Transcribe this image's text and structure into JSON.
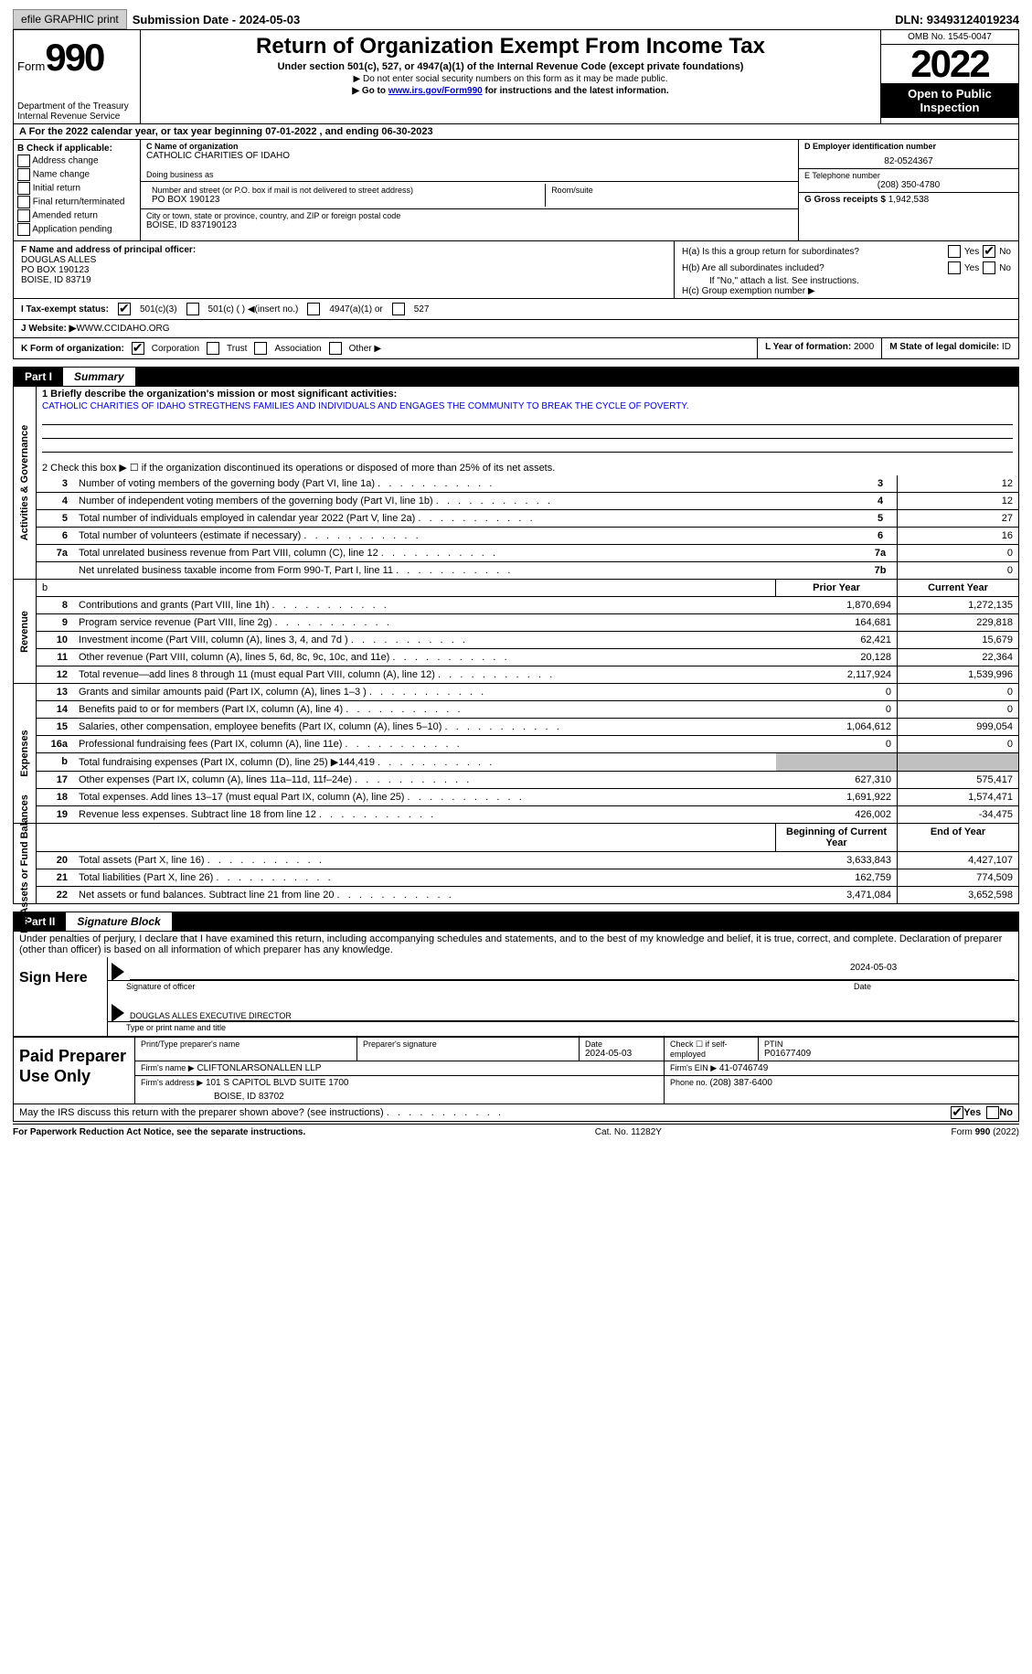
{
  "header": {
    "efile": "efile GRAPHIC print",
    "sub_lbl": "Submission Date - ",
    "sub_date": "2024-05-03",
    "dln_lbl": "DLN: ",
    "dln": "93493124019234"
  },
  "top": {
    "form": "Form",
    "num": "990",
    "title": "Return of Organization Exempt From Income Tax",
    "sub": "Under section 501(c), 527, or 4947(a)(1) of the Internal Revenue Code (except private foundations)",
    "sub2": "▶ Do not enter social security numbers on this form as it may be made public.",
    "sub3_pre": "▶ Go to ",
    "sub3_link": "www.irs.gov/Form990",
    "sub3_post": " for instructions and the latest information.",
    "dept": "Department of the Treasury",
    "irs": "Internal Revenue Service",
    "omb": "OMB No. 1545-0047",
    "year": "2022",
    "otp": "Open to Public Inspection"
  },
  "A": {
    "text": "A For the 2022 calendar year, or tax year beginning 07-01-2022   , and ending 06-30-2023"
  },
  "B": {
    "hdr": "B Check if applicable:",
    "items": [
      "Address change",
      "Name change",
      "Initial return",
      "Final return/terminated",
      "Amended return",
      "Application pending"
    ]
  },
  "C": {
    "name_lbl": "C Name of organization",
    "name": "CATHOLIC CHARITIES OF IDAHO",
    "dba_lbl": "Doing business as",
    "addr_lbl": "Number and street (or P.O. box if mail is not delivered to street address)",
    "room_lbl": "Room/suite",
    "addr": "PO BOX 190123",
    "city_lbl": "City or town, state or province, country, and ZIP or foreign postal code",
    "city": "BOISE, ID  837190123"
  },
  "D": {
    "lbl": "D Employer identification number",
    "val": "82-0524367"
  },
  "E": {
    "lbl": "E Telephone number",
    "val": "(208) 350-4780"
  },
  "G": {
    "lbl": "G Gross receipts $ ",
    "val": "1,942,538"
  },
  "F": {
    "lbl": "F Name and address of principal officer:",
    "name": "DOUGLAS ALLES",
    "addr1": "PO BOX 190123",
    "addr2": "BOISE, ID  83719"
  },
  "H": {
    "a": "H(a)  Is this a group return for subordinates?",
    "b": "H(b)  Are all subordinates included?",
    "b2": "If \"No,\" attach a list. See instructions.",
    "c": "H(c)  Group exemption number ▶",
    "yes": "Yes",
    "no": "No"
  },
  "I": {
    "lbl": "I   Tax-exempt status:",
    "o1": "501(c)(3)",
    "o2": "501(c) (   ) ◀(insert no.)",
    "o3": "4947(a)(1) or",
    "o4": "527"
  },
  "J": {
    "lbl": "J   Website: ▶",
    "val": "  WWW.CCIDAHO.ORG"
  },
  "K": {
    "lbl": "K Form of organization:",
    "o1": "Corporation",
    "o2": "Trust",
    "o3": "Association",
    "o4": "Other ▶"
  },
  "L": {
    "lbl": "L Year of formation: ",
    "val": "2000"
  },
  "M": {
    "lbl": "M State of legal domicile: ",
    "val": "ID"
  },
  "part1": {
    "lbl": "Part I",
    "ttl": "Summary"
  },
  "s1": {
    "q1": "1   Briefly describe the organization's mission or most significant activities:",
    "mission": "CATHOLIC CHARITIES OF IDAHO STREGTHENS FAMILIES AND INDIVIDUALS AND ENGAGES THE COMMUNITY TO BREAK THE CYCLE OF POVERTY.",
    "q2": "2   Check this box ▶ ☐  if the organization discontinued its operations or disposed of more than 25% of its net assets.",
    "vlabel": "Activities & Governance",
    "rows": [
      {
        "n": "3",
        "d": "Number of voting members of the governing body (Part VI, line 1a)",
        "k": "3",
        "v": "12"
      },
      {
        "n": "4",
        "d": "Number of independent voting members of the governing body (Part VI, line 1b)",
        "k": "4",
        "v": "12"
      },
      {
        "n": "5",
        "d": "Total number of individuals employed in calendar year 2022 (Part V, line 2a)",
        "k": "5",
        "v": "27"
      },
      {
        "n": "6",
        "d": "Total number of volunteers (estimate if necessary)",
        "k": "6",
        "v": "16"
      },
      {
        "n": "7a",
        "d": "Total unrelated business revenue from Part VIII, column (C), line 12",
        "k": "7a",
        "v": "0"
      },
      {
        "n": "",
        "d": "Net unrelated business taxable income from Form 990-T, Part I, line 11",
        "k": "7b",
        "v": "0"
      }
    ]
  },
  "cols": {
    "py": "Prior Year",
    "cy": "Current Year",
    "boy": "Beginning of Current Year",
    "eoy": "End of Year"
  },
  "rev": {
    "vlabel": "Revenue",
    "rows": [
      {
        "n": "8",
        "d": "Contributions and grants (Part VIII, line 1h)",
        "p": "1,870,694",
        "c": "1,272,135"
      },
      {
        "n": "9",
        "d": "Program service revenue (Part VIII, line 2g)",
        "p": "164,681",
        "c": "229,818"
      },
      {
        "n": "10",
        "d": "Investment income (Part VIII, column (A), lines 3, 4, and 7d )",
        "p": "62,421",
        "c": "15,679"
      },
      {
        "n": "11",
        "d": "Other revenue (Part VIII, column (A), lines 5, 6d, 8c, 9c, 10c, and 11e)",
        "p": "20,128",
        "c": "22,364"
      },
      {
        "n": "12",
        "d": "Total revenue—add lines 8 through 11 (must equal Part VIII, column (A), line 12)",
        "p": "2,117,924",
        "c": "1,539,996"
      }
    ]
  },
  "exp": {
    "vlabel": "Expenses",
    "rows": [
      {
        "n": "13",
        "d": "Grants and similar amounts paid (Part IX, column (A), lines 1–3 )",
        "p": "0",
        "c": "0"
      },
      {
        "n": "14",
        "d": "Benefits paid to or for members (Part IX, column (A), line 4)",
        "p": "0",
        "c": "0"
      },
      {
        "n": "15",
        "d": "Salaries, other compensation, employee benefits (Part IX, column (A), lines 5–10)",
        "p": "1,064,612",
        "c": "999,054"
      },
      {
        "n": "16a",
        "d": "Professional fundraising fees (Part IX, column (A), line 11e)",
        "p": "0",
        "c": "0"
      },
      {
        "n": "b",
        "d": "Total fundraising expenses (Part IX, column (D), line 25) ▶144,419",
        "p": "",
        "c": "",
        "grey": true
      },
      {
        "n": "17",
        "d": "Other expenses (Part IX, column (A), lines 11a–11d, 11f–24e)",
        "p": "627,310",
        "c": "575,417"
      },
      {
        "n": "18",
        "d": "Total expenses. Add lines 13–17 (must equal Part IX, column (A), line 25)",
        "p": "1,691,922",
        "c": "1,574,471"
      },
      {
        "n": "19",
        "d": "Revenue less expenses. Subtract line 18 from line 12",
        "p": "426,002",
        "c": "-34,475"
      }
    ]
  },
  "na": {
    "vlabel": "Net Assets or Fund Balances",
    "rows": [
      {
        "n": "20",
        "d": "Total assets (Part X, line 16)",
        "p": "3,633,843",
        "c": "4,427,107"
      },
      {
        "n": "21",
        "d": "Total liabilities (Part X, line 26)",
        "p": "162,759",
        "c": "774,509"
      },
      {
        "n": "22",
        "d": "Net assets or fund balances. Subtract line 21 from line 20",
        "p": "3,471,084",
        "c": "3,652,598"
      }
    ]
  },
  "part2": {
    "lbl": "Part II",
    "ttl": "Signature Block"
  },
  "decl": "Under penalties of perjury, I declare that I have examined this return, including accompanying schedules and statements, and to the best of my knowledge and belief, it is true, correct, and complete. Declaration of preparer (other than officer) is based on all information of which preparer has any knowledge.",
  "sign": {
    "here": "Sign Here",
    "sig_lbl": "Signature of officer",
    "date": "2024-05-03",
    "date_lbl": "Date",
    "name": "DOUGLAS ALLES  EXECUTIVE DIRECTOR",
    "name_lbl": "Type or print name and title"
  },
  "prep": {
    "ttl": "Paid Preparer Use Only",
    "h1": "Print/Type preparer's name",
    "h2": "Preparer's signature",
    "h3_lbl": "Date",
    "h3": "2024-05-03",
    "h4": "Check ☐ if self-employed",
    "h5_lbl": "PTIN",
    "h5": "P01677409",
    "firm_lbl": "Firm's name     ▶",
    "firm": "CLIFTONLARSONALLEN LLP",
    "ein_lbl": "Firm's EIN ▶",
    "ein": "41-0746749",
    "addr_lbl": "Firm's address ▶",
    "addr1": "101 S CAPITOL BLVD SUITE 1700",
    "addr2": "BOISE, ID  83702",
    "ph_lbl": "Phone no. ",
    "ph": "(208) 387-6400"
  },
  "discuss": "May the IRS discuss this return with the preparer shown above? (see instructions)",
  "foot": {
    "l": "For Paperwork Reduction Act Notice, see the separate instructions.",
    "c": "Cat. No. 11282Y",
    "r": "Form 990 (2022)"
  }
}
